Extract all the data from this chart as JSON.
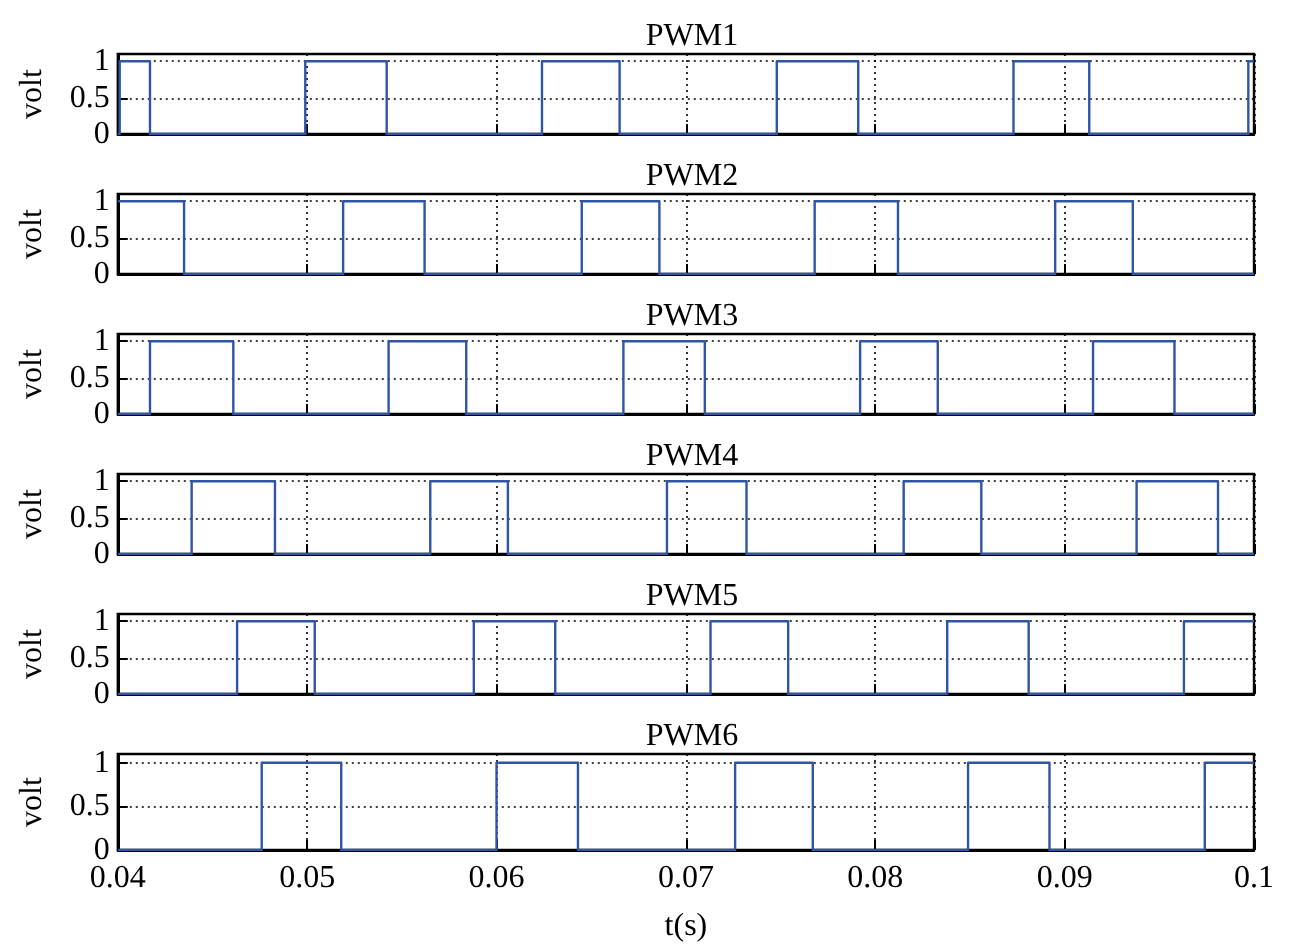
{
  "chart_data": [
    {
      "type": "step",
      "title": "PWM1",
      "ylabel": "volt",
      "xlim": [
        0.04,
        0.1
      ],
      "xticks": [
        0.04,
        0.05,
        0.06,
        0.07,
        0.08,
        0.09,
        0.1
      ],
      "ylim": [
        0,
        1.1
      ],
      "yticks": [
        0,
        0.5,
        1
      ],
      "grid": true,
      "tick_labels": "y",
      "series": [
        {
          "color": "#2f55a4",
          "x": [
            0.04,
            0.0401,
            0.0417,
            0.0499,
            0.0542,
            0.0624,
            0.0665,
            0.0748,
            0.0791,
            0.0873,
            0.0913,
            0.0997,
            0.1
          ],
          "values": [
            0,
            1,
            0,
            1,
            0,
            1,
            0,
            1,
            0,
            1,
            0,
            1,
            1
          ]
        }
      ]
    },
    {
      "type": "step",
      "title": "PWM2",
      "ylabel": "volt",
      "xlim": [
        0.04,
        0.1
      ],
      "xticks": [
        0.04,
        0.05,
        0.06,
        0.07,
        0.08,
        0.09,
        0.1
      ],
      "ylim": [
        0,
        1.1
      ],
      "yticks": [
        0,
        0.5,
        1
      ],
      "grid": true,
      "tick_labels": "y",
      "series": [
        {
          "color": "#2f55a4",
          "x": [
            0.04,
            0.0435,
            0.0519,
            0.0562,
            0.0645,
            0.0686,
            0.0768,
            0.0812,
            0.0895,
            0.0936,
            0.1
          ],
          "values": [
            1,
            0,
            1,
            0,
            1,
            0,
            1,
            0,
            1,
            0,
            0
          ]
        }
      ]
    },
    {
      "type": "step",
      "title": "PWM3",
      "ylabel": "volt",
      "xlim": [
        0.04,
        0.1
      ],
      "xticks": [
        0.04,
        0.05,
        0.06,
        0.07,
        0.08,
        0.09,
        0.1
      ],
      "ylim": [
        0,
        1.1
      ],
      "yticks": [
        0,
        0.5,
        1
      ],
      "grid": true,
      "tick_labels": "y",
      "series": [
        {
          "color": "#2f55a4",
          "x": [
            0.04,
            0.0417,
            0.0461,
            0.0543,
            0.0584,
            0.0667,
            0.071,
            0.0792,
            0.0833,
            0.0915,
            0.0958,
            0.1
          ],
          "values": [
            0,
            1,
            0,
            1,
            0,
            1,
            0,
            1,
            0,
            1,
            0,
            0
          ]
        }
      ]
    },
    {
      "type": "step",
      "title": "PWM4",
      "ylabel": "volt",
      "xlim": [
        0.04,
        0.1
      ],
      "xticks": [
        0.04,
        0.05,
        0.06,
        0.07,
        0.08,
        0.09,
        0.1
      ],
      "ylim": [
        0,
        1.1
      ],
      "yticks": [
        0,
        0.5,
        1
      ],
      "grid": true,
      "tick_labels": "y",
      "series": [
        {
          "color": "#2f55a4",
          "x": [
            0.04,
            0.0439,
            0.0483,
            0.0565,
            0.0606,
            0.069,
            0.0732,
            0.0815,
            0.0856,
            0.0938,
            0.0981,
            0.1
          ],
          "values": [
            0,
            1,
            0,
            1,
            0,
            1,
            0,
            1,
            0,
            1,
            0,
            0
          ]
        }
      ]
    },
    {
      "type": "step",
      "title": "PWM5",
      "ylabel": "volt",
      "xlim": [
        0.04,
        0.1
      ],
      "xticks": [
        0.04,
        0.05,
        0.06,
        0.07,
        0.08,
        0.09,
        0.1
      ],
      "ylim": [
        0,
        1.1
      ],
      "yticks": [
        0,
        0.5,
        1
      ],
      "grid": true,
      "tick_labels": "y",
      "series": [
        {
          "color": "#2f55a4",
          "x": [
            0.04,
            0.0463,
            0.0504,
            0.0588,
            0.0631,
            0.0713,
            0.0754,
            0.0838,
            0.0881,
            0.0963,
            0.1
          ],
          "values": [
            0,
            1,
            0,
            1,
            0,
            1,
            0,
            1,
            0,
            1,
            1
          ]
        }
      ]
    },
    {
      "type": "step",
      "title": "PWM6",
      "ylabel": "volt",
      "xlabel": "t(s)",
      "xlim": [
        0.04,
        0.1
      ],
      "xticks": [
        0.04,
        0.05,
        0.06,
        0.07,
        0.08,
        0.09,
        0.1
      ],
      "ylim": [
        0,
        1.1
      ],
      "yticks": [
        0,
        0.5,
        1
      ],
      "grid": true,
      "series": [
        {
          "color": "#2f55a4",
          "x": [
            0.04,
            0.0476,
            0.0518,
            0.06,
            0.0643,
            0.0726,
            0.0767,
            0.0849,
            0.0892,
            0.0974,
            0.1
          ],
          "values": [
            0,
            1,
            0,
            1,
            0,
            1,
            0,
            1,
            0,
            1,
            1
          ]
        }
      ]
    }
  ]
}
